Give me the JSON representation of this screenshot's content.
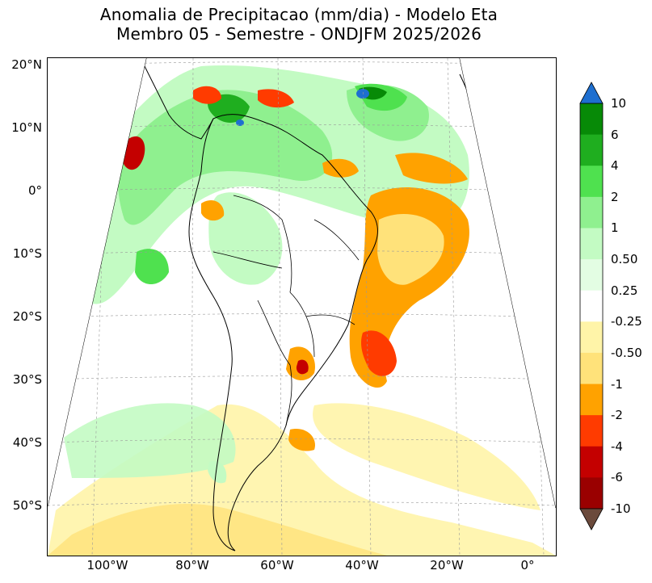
{
  "title": {
    "line1": "Anomalia de Precipitacao (mm/dia) - Modelo Eta",
    "line2": "Membro 05 - Semestre - ONDJFM 2025/2026"
  },
  "map": {
    "lat_labels": [
      "20°N",
      "10°N",
      "0°",
      "10°S",
      "20°S",
      "30°S",
      "40°S",
      "50°S"
    ],
    "lon_labels": [
      "100°W",
      "80°W",
      "60°W",
      "40°W",
      "20°W",
      "0°"
    ],
    "projection_shape": "polyconic fan",
    "features": [
      "coastlines",
      "country borders",
      "Brazilian state borders",
      "dashed graticule"
    ]
  },
  "colorbar": {
    "labels": [
      "10",
      "6",
      "4",
      "2",
      "1",
      "0.50",
      "0.25",
      "-0.25",
      "-0.50",
      "-1",
      "-2",
      "-4",
      "-6",
      "-10"
    ],
    "extend_top_color": "#1e6fd0",
    "extend_bottom_color": "#6b4a3c",
    "colors": [
      "#078a07",
      "#1fae1f",
      "#4fe14f",
      "#8ff08f",
      "#c3fbc3",
      "#e3fde3",
      "#ffffff",
      "#fff4a8",
      "#ffe27a",
      "#ffa200",
      "#ff3b00",
      "#c40000",
      "#9a0000"
    ]
  }
}
